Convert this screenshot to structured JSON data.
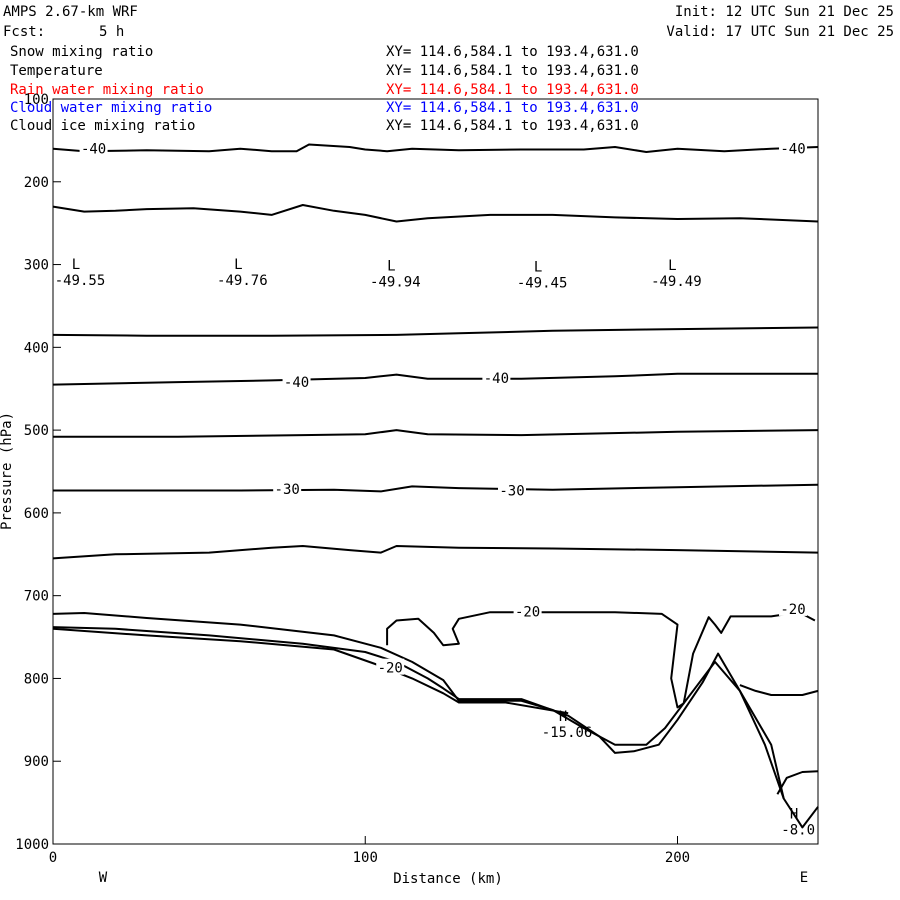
{
  "header": {
    "model": "AMPS 2.67-km WRF",
    "fcst_label": "Fcst:",
    "fcst_value": "5 h",
    "init": "Init: 12 UTC Sun 21 Dec 25",
    "valid": "Valid: 17 UTC Sun 21 Dec 25"
  },
  "fields": [
    {
      "name": "Snow mixing ratio",
      "coords": "XY= 114.6,584.1 to 193.4,631.0",
      "color": "#000000"
    },
    {
      "name": "Temperature",
      "coords": "XY= 114.6,584.1 to 193.4,631.0",
      "color": "#000000"
    },
    {
      "name": "Rain water mixing ratio",
      "coords": "XY= 114.6,584.1 to 193.4,631.0",
      "color": "#ff0000"
    },
    {
      "name": "Cloud water mixing ratio",
      "coords": "XY= 114.6,584.1 to 193.4,631.0",
      "color": "#0000ff"
    },
    {
      "name": "Cloud ice mixing ratio",
      "coords": "XY= 114.6,584.1 to 193.4,631.0",
      "color": "#000000"
    }
  ],
  "chart_data": {
    "type": "line",
    "title": "Temperature",
    "xlabel": "Distance (km)",
    "ylabel": "Pressure (hPa)",
    "xlim": [
      0,
      245
    ],
    "ylim": [
      100,
      1000
    ],
    "y_inverted": true,
    "xticks": [
      0,
      100,
      200
    ],
    "yticks": [
      100,
      200,
      300,
      400,
      500,
      600,
      700,
      800,
      900,
      1000
    ],
    "x_end_labels": {
      "left": "W",
      "right": "E"
    },
    "grid": false,
    "contour_labels": [
      {
        "text": "-40",
        "x": 13,
        "y": 160
      },
      {
        "text": "-40",
        "x": 237,
        "y": 160
      },
      {
        "text": "-40",
        "x": 78,
        "y": 442
      },
      {
        "text": "-40",
        "x": 142,
        "y": 437
      },
      {
        "text": "-30",
        "x": 75,
        "y": 571
      },
      {
        "text": "-30",
        "x": 147,
        "y": 573
      },
      {
        "text": "-20",
        "x": 152,
        "y": 719
      },
      {
        "text": "-20",
        "x": 237,
        "y": 716
      },
      {
        "text": "-20",
        "x": 108,
        "y": 787
      }
    ],
    "extrema": [
      {
        "type": "L",
        "value": "-49.55",
        "x": 8,
        "y": 315
      },
      {
        "type": "L",
        "value": "-49.76",
        "x": 60,
        "y": 315
      },
      {
        "type": "L",
        "value": "-49.94",
        "x": 109,
        "y": 317
      },
      {
        "type": "L",
        "value": "-49.45",
        "x": 156,
        "y": 318
      },
      {
        "type": "L",
        "value": "-49.49",
        "x": 199,
        "y": 316
      },
      {
        "type": "H",
        "value": "-15.06",
        "x": 164,
        "y": 861
      },
      {
        "type": "H",
        "value": "-8.0",
        "x": 238,
        "y": 979
      }
    ],
    "series": [
      {
        "values": [
          [
            0,
            160
          ],
          [
            10,
            163
          ],
          [
            30,
            162
          ],
          [
            50,
            163
          ],
          [
            60,
            160
          ],
          [
            70,
            163
          ],
          [
            78,
            163
          ],
          [
            82,
            155
          ],
          [
            95,
            158
          ],
          [
            100,
            161
          ],
          [
            107,
            163
          ],
          [
            115,
            160
          ],
          [
            130,
            162
          ],
          [
            150,
            161
          ],
          [
            170,
            161
          ],
          [
            180,
            158
          ],
          [
            190,
            164
          ],
          [
            200,
            160
          ],
          [
            215,
            163
          ],
          [
            230,
            160
          ],
          [
            245,
            158
          ]
        ]
      },
      {
        "values": [
          [
            0,
            230
          ],
          [
            10,
            236
          ],
          [
            20,
            235
          ],
          [
            30,
            233
          ],
          [
            45,
            232
          ],
          [
            60,
            236
          ],
          [
            70,
            240
          ],
          [
            80,
            228
          ],
          [
            90,
            235
          ],
          [
            100,
            240
          ],
          [
            110,
            248
          ],
          [
            120,
            244
          ],
          [
            140,
            240
          ],
          [
            160,
            240
          ],
          [
            180,
            243
          ],
          [
            200,
            245
          ],
          [
            220,
            244
          ],
          [
            245,
            248
          ]
        ]
      },
      {
        "values": [
          [
            0,
            385
          ],
          [
            30,
            386
          ],
          [
            70,
            386
          ],
          [
            110,
            385
          ],
          [
            130,
            383
          ],
          [
            160,
            380
          ],
          [
            200,
            378
          ],
          [
            245,
            376
          ]
        ]
      },
      {
        "values": [
          [
            0,
            445
          ],
          [
            40,
            442
          ],
          [
            70,
            440
          ],
          [
            100,
            437
          ],
          [
            110,
            433
          ],
          [
            120,
            438
          ],
          [
            150,
            438
          ],
          [
            180,
            435
          ],
          [
            200,
            432
          ],
          [
            245,
            432
          ]
        ]
      },
      {
        "values": [
          [
            0,
            508
          ],
          [
            40,
            508
          ],
          [
            80,
            506
          ],
          [
            100,
            505
          ],
          [
            110,
            500
          ],
          [
            120,
            505
          ],
          [
            150,
            506
          ],
          [
            200,
            502
          ],
          [
            245,
            500
          ]
        ]
      },
      {
        "values": [
          [
            0,
            573
          ],
          [
            30,
            573
          ],
          [
            60,
            573
          ],
          [
            90,
            572
          ],
          [
            105,
            574
          ],
          [
            115,
            568
          ],
          [
            130,
            570
          ],
          [
            160,
            572
          ],
          [
            200,
            569
          ],
          [
            245,
            566
          ]
        ]
      },
      {
        "values": [
          [
            0,
            655
          ],
          [
            20,
            650
          ],
          [
            50,
            648
          ],
          [
            70,
            642
          ],
          [
            80,
            640
          ],
          [
            95,
            645
          ],
          [
            105,
            648
          ],
          [
            110,
            640
          ],
          [
            130,
            642
          ],
          [
            160,
            643
          ],
          [
            200,
            645
          ],
          [
            245,
            648
          ]
        ]
      },
      {
        "values": [
          [
            0,
            722
          ],
          [
            10,
            721
          ],
          [
            30,
            727
          ],
          [
            60,
            735
          ],
          [
            90,
            748
          ],
          [
            105,
            763
          ],
          [
            115,
            780
          ],
          [
            125,
            802
          ],
          [
            130,
            827
          ],
          [
            150,
            827
          ],
          [
            160,
            838
          ],
          [
            170,
            860
          ],
          [
            180,
            880
          ],
          [
            190,
            880
          ],
          [
            196,
            860
          ],
          [
            202,
            830
          ],
          [
            212,
            780
          ],
          [
            220,
            815
          ],
          [
            230,
            880
          ],
          [
            234,
            945
          ],
          [
            240,
            980
          ],
          [
            245,
            955
          ]
        ]
      },
      {
        "values": [
          [
            0,
            738
          ],
          [
            20,
            740
          ],
          [
            50,
            748
          ],
          [
            80,
            758
          ],
          [
            100,
            768
          ],
          [
            110,
            780
          ],
          [
            120,
            800
          ],
          [
            125,
            812
          ],
          [
            130,
            825
          ],
          [
            150,
            825
          ],
          [
            165,
            845
          ],
          [
            175,
            870
          ],
          [
            180,
            890
          ],
          [
            186,
            888
          ],
          [
            194,
            880
          ],
          [
            200,
            850
          ],
          [
            208,
            805
          ],
          [
            213,
            770
          ],
          [
            220,
            815
          ],
          [
            228,
            880
          ],
          [
            234,
            945
          ]
        ]
      },
      {
        "values": [
          [
            0,
            740
          ],
          [
            30,
            748
          ],
          [
            60,
            755
          ],
          [
            90,
            765
          ],
          [
            105,
            785
          ],
          [
            115,
            800
          ],
          [
            125,
            818
          ],
          [
            130,
            829
          ],
          [
            145,
            829
          ],
          [
            165,
            842
          ]
        ]
      },
      {
        "values": [
          [
            107,
            760
          ],
          [
            107,
            740
          ],
          [
            110,
            730
          ],
          [
            117,
            728
          ],
          [
            122,
            745
          ],
          [
            125,
            760
          ],
          [
            130,
            758
          ],
          [
            128,
            740
          ],
          [
            130,
            728
          ],
          [
            140,
            720
          ],
          [
            155,
            720
          ],
          [
            180,
            720
          ],
          [
            195,
            722
          ],
          [
            200,
            735
          ],
          [
            198,
            800
          ],
          [
            200,
            835
          ],
          [
            202,
            830
          ],
          [
            205,
            770
          ],
          [
            210,
            726
          ],
          [
            212,
            735
          ],
          [
            214,
            745
          ],
          [
            217,
            725
          ],
          [
            230,
            725
          ],
          [
            239,
            720
          ],
          [
            244,
            730
          ]
        ]
      },
      {
        "values": [
          [
            220,
            808
          ],
          [
            225,
            815
          ],
          [
            230,
            820
          ],
          [
            240,
            820
          ],
          [
            245,
            815
          ]
        ]
      },
      {
        "values": [
          [
            232,
            940
          ],
          [
            235,
            920
          ],
          [
            240,
            913
          ],
          [
            245,
            912
          ]
        ]
      }
    ]
  }
}
